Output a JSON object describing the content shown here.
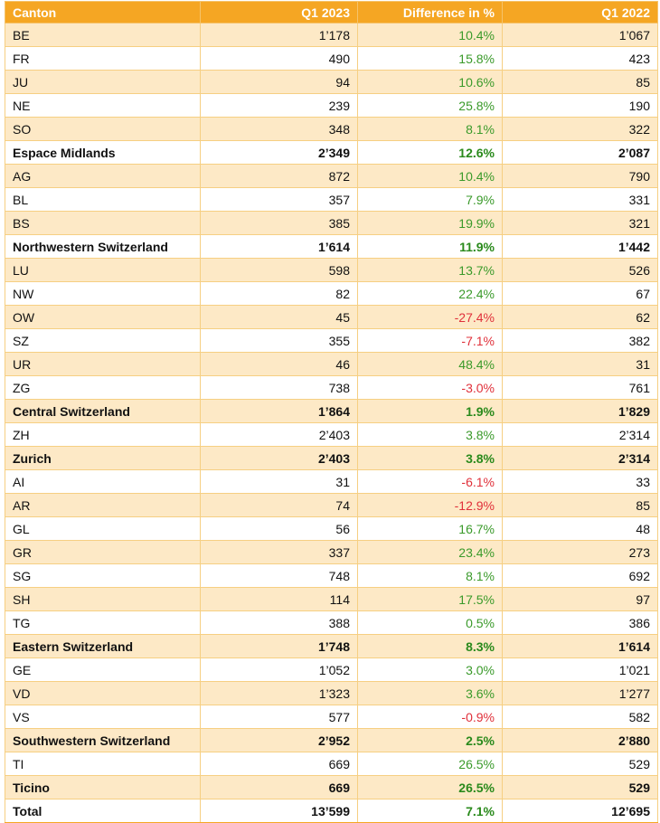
{
  "chart_data": {
    "type": "table",
    "columns": [
      "Canton",
      "Q1 2023",
      "Difference in %",
      "Q1 2022"
    ],
    "rows": [
      {
        "label": "BE",
        "q1_2023": "1’178",
        "diff": "10.4%",
        "q1_2022": "1’067",
        "kind": "canton",
        "sign": "pos"
      },
      {
        "label": "FR",
        "q1_2023": "490",
        "diff": "15.8%",
        "q1_2022": "423",
        "kind": "canton",
        "sign": "pos"
      },
      {
        "label": "JU",
        "q1_2023": "94",
        "diff": "10.6%",
        "q1_2022": "85",
        "kind": "canton",
        "sign": "pos"
      },
      {
        "label": "NE",
        "q1_2023": "239",
        "diff": "25.8%",
        "q1_2022": "190",
        "kind": "canton",
        "sign": "pos"
      },
      {
        "label": "SO",
        "q1_2023": "348",
        "diff": "8.1%",
        "q1_2022": "322",
        "kind": "canton",
        "sign": "pos"
      },
      {
        "label": "Espace Midlands",
        "q1_2023": "2’349",
        "diff": "12.6%",
        "q1_2022": "2’087",
        "kind": "region",
        "sign": "pos"
      },
      {
        "label": "AG",
        "q1_2023": "872",
        "diff": "10.4%",
        "q1_2022": "790",
        "kind": "canton",
        "sign": "pos"
      },
      {
        "label": "BL",
        "q1_2023": "357",
        "diff": "7.9%",
        "q1_2022": "331",
        "kind": "canton",
        "sign": "pos"
      },
      {
        "label": "BS",
        "q1_2023": "385",
        "diff": "19.9%",
        "q1_2022": "321",
        "kind": "canton",
        "sign": "pos"
      },
      {
        "label": "Northwestern Switzerland",
        "q1_2023": "1’614",
        "diff": "11.9%",
        "q1_2022": "1’442",
        "kind": "region",
        "sign": "pos"
      },
      {
        "label": "LU",
        "q1_2023": "598",
        "diff": "13.7%",
        "q1_2022": "526",
        "kind": "canton",
        "sign": "pos"
      },
      {
        "label": "NW",
        "q1_2023": "82",
        "diff": "22.4%",
        "q1_2022": "67",
        "kind": "canton",
        "sign": "pos"
      },
      {
        "label": "OW",
        "q1_2023": "45",
        "diff": "-27.4%",
        "q1_2022": "62",
        "kind": "canton",
        "sign": "neg"
      },
      {
        "label": "SZ",
        "q1_2023": "355",
        "diff": "-7.1%",
        "q1_2022": "382",
        "kind": "canton",
        "sign": "neg"
      },
      {
        "label": "UR",
        "q1_2023": "46",
        "diff": "48.4%",
        "q1_2022": "31",
        "kind": "canton",
        "sign": "pos"
      },
      {
        "label": "ZG",
        "q1_2023": "738",
        "diff": "-3.0%",
        "q1_2022": "761",
        "kind": "canton",
        "sign": "neg"
      },
      {
        "label": "Central Switzerland",
        "q1_2023": "1’864",
        "diff": "1.9%",
        "q1_2022": "1’829",
        "kind": "region",
        "sign": "pos"
      },
      {
        "label": "ZH",
        "q1_2023": "2’403",
        "diff": "3.8%",
        "q1_2022": "2’314",
        "kind": "canton",
        "sign": "pos"
      },
      {
        "label": "Zurich",
        "q1_2023": "2’403",
        "diff": "3.8%",
        "q1_2022": "2’314",
        "kind": "region",
        "sign": "pos"
      },
      {
        "label": "AI",
        "q1_2023": "31",
        "diff": "-6.1%",
        "q1_2022": "33",
        "kind": "canton",
        "sign": "neg"
      },
      {
        "label": "AR",
        "q1_2023": "74",
        "diff": "-12.9%",
        "q1_2022": "85",
        "kind": "canton",
        "sign": "neg"
      },
      {
        "label": "GL",
        "q1_2023": "56",
        "diff": "16.7%",
        "q1_2022": "48",
        "kind": "canton",
        "sign": "pos"
      },
      {
        "label": "GR",
        "q1_2023": "337",
        "diff": "23.4%",
        "q1_2022": "273",
        "kind": "canton",
        "sign": "pos"
      },
      {
        "label": "SG",
        "q1_2023": "748",
        "diff": "8.1%",
        "q1_2022": "692",
        "kind": "canton",
        "sign": "pos"
      },
      {
        "label": "SH",
        "q1_2023": "114",
        "diff": "17.5%",
        "q1_2022": "97",
        "kind": "canton",
        "sign": "pos"
      },
      {
        "label": "TG",
        "q1_2023": "388",
        "diff": "0.5%",
        "q1_2022": "386",
        "kind": "canton",
        "sign": "pos"
      },
      {
        "label": "Eastern Switzerland",
        "q1_2023": "1’748",
        "diff": "8.3%",
        "q1_2022": "1’614",
        "kind": "region",
        "sign": "pos"
      },
      {
        "label": "GE",
        "q1_2023": "1’052",
        "diff": "3.0%",
        "q1_2022": "1’021",
        "kind": "canton",
        "sign": "pos"
      },
      {
        "label": "VD",
        "q1_2023": "1’323",
        "diff": "3.6%",
        "q1_2022": "1’277",
        "kind": "canton",
        "sign": "pos"
      },
      {
        "label": "VS",
        "q1_2023": "577",
        "diff": "-0.9%",
        "q1_2022": "582",
        "kind": "canton",
        "sign": "neg"
      },
      {
        "label": "Southwestern Switzerland",
        "q1_2023": "2’952",
        "diff": "2.5%",
        "q1_2022": "2’880",
        "kind": "region",
        "sign": "pos"
      },
      {
        "label": "TI",
        "q1_2023": "669",
        "diff": "26.5%",
        "q1_2022": "529",
        "kind": "canton",
        "sign": "pos"
      },
      {
        "label": "Ticino",
        "q1_2023": "669",
        "diff": "26.5%",
        "q1_2022": "529",
        "kind": "region",
        "sign": "pos"
      },
      {
        "label": "Total",
        "q1_2023": "13’599",
        "diff": "7.1%",
        "q1_2022": "12’695",
        "kind": "total",
        "sign": "pos"
      }
    ]
  },
  "colors": {
    "header_bg": "#f5a623",
    "header_text": "#ffffff",
    "row_shade": "#fde9c6",
    "border": "#f6cf82",
    "positive": "#3a9a2a",
    "negative": "#e0303a"
  }
}
